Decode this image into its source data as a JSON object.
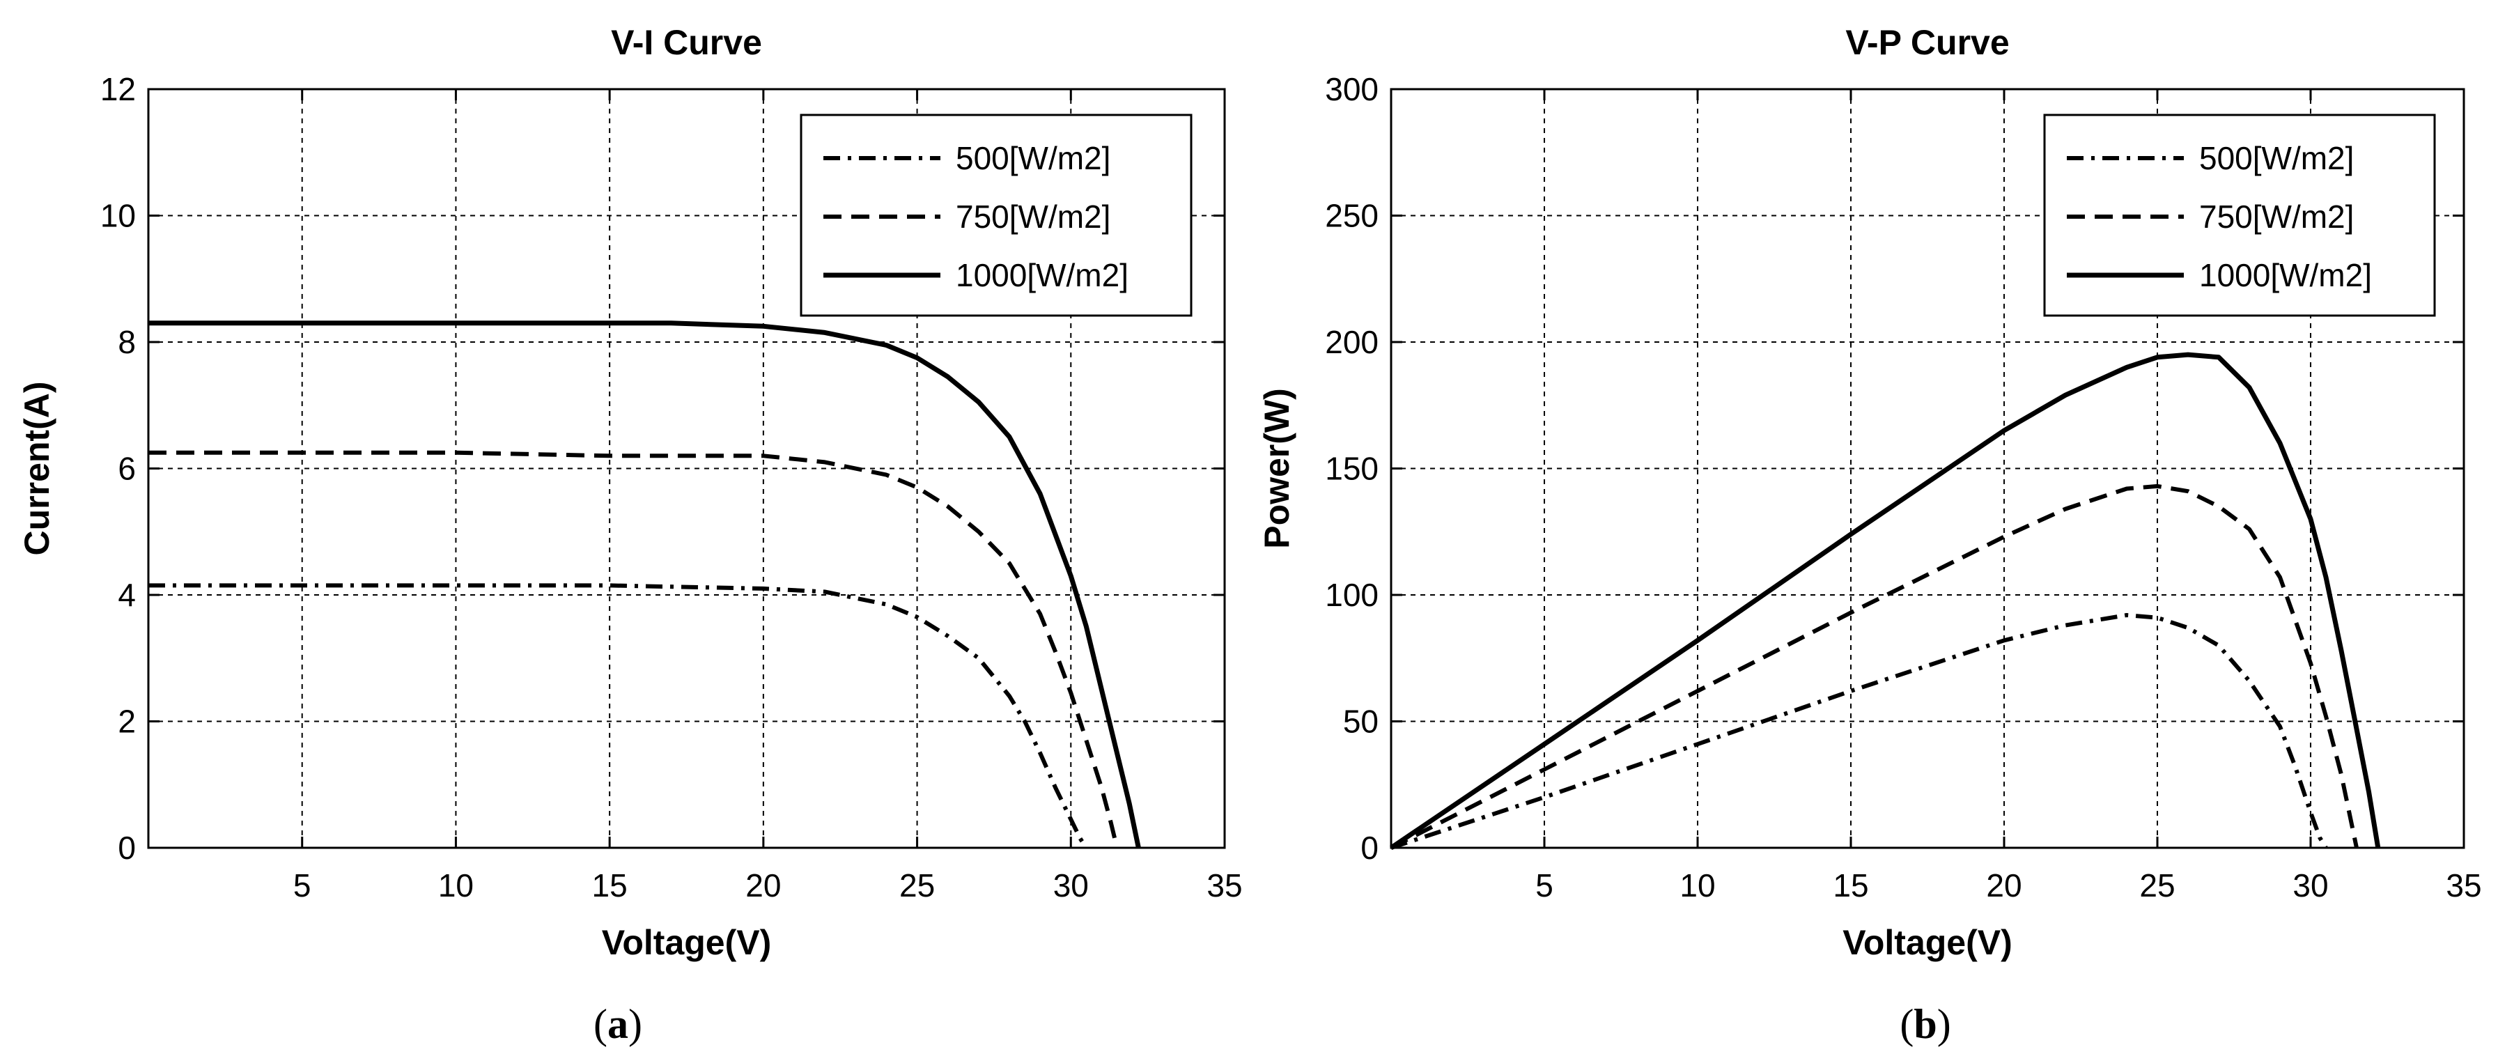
{
  "chart_data": [
    {
      "type": "line",
      "title": "V-I Curve",
      "xlabel": "Voltage(V)",
      "ylabel": "Current(A)",
      "xlim": [
        0,
        35
      ],
      "ylim": [
        0,
        12
      ],
      "xticks": [
        5,
        10,
        15,
        20,
        25,
        30,
        35
      ],
      "yticks": [
        0,
        2,
        4,
        6,
        8,
        10,
        12
      ],
      "grid": true,
      "legend_position": "top-right",
      "caption_letter": "a",
      "series": [
        {
          "name": "500[W/m2]",
          "style": "dashdot",
          "x": [
            0,
            5,
            10,
            15,
            20,
            22,
            24,
            25,
            26,
            27,
            28,
            28.5,
            29,
            29.5,
            30,
            30.3,
            30.5
          ],
          "y": [
            4.15,
            4.15,
            4.15,
            4.15,
            4.1,
            4.05,
            3.85,
            3.65,
            3.35,
            3.0,
            2.4,
            2.0,
            1.5,
            0.95,
            0.45,
            0.15,
            0
          ]
        },
        {
          "name": "750[W/m2]",
          "style": "dashed",
          "x": [
            0,
            5,
            10,
            15,
            20,
            22,
            24,
            25,
            26,
            27,
            28,
            29,
            29.5,
            30,
            30.5,
            31,
            31.3,
            31.5
          ],
          "y": [
            6.25,
            6.25,
            6.25,
            6.2,
            6.2,
            6.1,
            5.9,
            5.7,
            5.4,
            5.0,
            4.5,
            3.7,
            3.1,
            2.45,
            1.7,
            0.95,
            0.4,
            0
          ]
        },
        {
          "name": "1000[W/m2]",
          "style": "solid",
          "x": [
            0,
            5,
            10,
            15,
            17,
            20,
            22,
            24,
            25,
            26,
            27,
            28,
            29,
            30,
            30.5,
            31,
            31.5,
            31.9,
            32.2
          ],
          "y": [
            8.3,
            8.3,
            8.3,
            8.3,
            8.3,
            8.25,
            8.15,
            7.95,
            7.75,
            7.45,
            7.05,
            6.5,
            5.6,
            4.3,
            3.5,
            2.5,
            1.5,
            0.7,
            0
          ]
        }
      ]
    },
    {
      "type": "line",
      "title": "V-P Curve",
      "xlabel": "Voltage(V)",
      "ylabel": "Power(W)",
      "xlim": [
        0,
        35
      ],
      "ylim": [
        0,
        300
      ],
      "xticks": [
        5,
        10,
        15,
        20,
        25,
        30,
        35
      ],
      "yticks": [
        0,
        50,
        100,
        150,
        200,
        250,
        300
      ],
      "grid": true,
      "legend_position": "top-right",
      "caption_letter": "b",
      "series": [
        {
          "name": "500[W/m2]",
          "style": "dashdot",
          "x": [
            0,
            5,
            10,
            15,
            20,
            22,
            24,
            25,
            26,
            27,
            28,
            29,
            29.5,
            30,
            30.3,
            30.5
          ],
          "y": [
            0,
            20,
            41,
            62,
            82,
            88,
            92,
            91,
            87,
            80,
            66,
            48,
            32,
            14,
            4,
            0
          ]
        },
        {
          "name": "750[W/m2]",
          "style": "dashed",
          "x": [
            0,
            5,
            10,
            15,
            20,
            22,
            24,
            25,
            26,
            27,
            28,
            29,
            30,
            30.5,
            31,
            31.5
          ],
          "y": [
            0,
            31,
            62,
            93,
            123,
            134,
            142,
            143,
            141,
            135,
            126,
            107,
            73,
            52,
            29,
            0
          ]
        },
        {
          "name": "1000[W/m2]",
          "style": "solid",
          "x": [
            0,
            5,
            10,
            15,
            20,
            22,
            24,
            25,
            26,
            27,
            28,
            29,
            30,
            30.5,
            31,
            31.5,
            31.9,
            32.2
          ],
          "y": [
            0,
            41,
            82,
            124,
            165,
            179,
            190,
            194,
            195,
            194,
            182,
            160,
            130,
            107,
            78,
            47,
            22,
            0
          ]
        }
      ]
    }
  ]
}
